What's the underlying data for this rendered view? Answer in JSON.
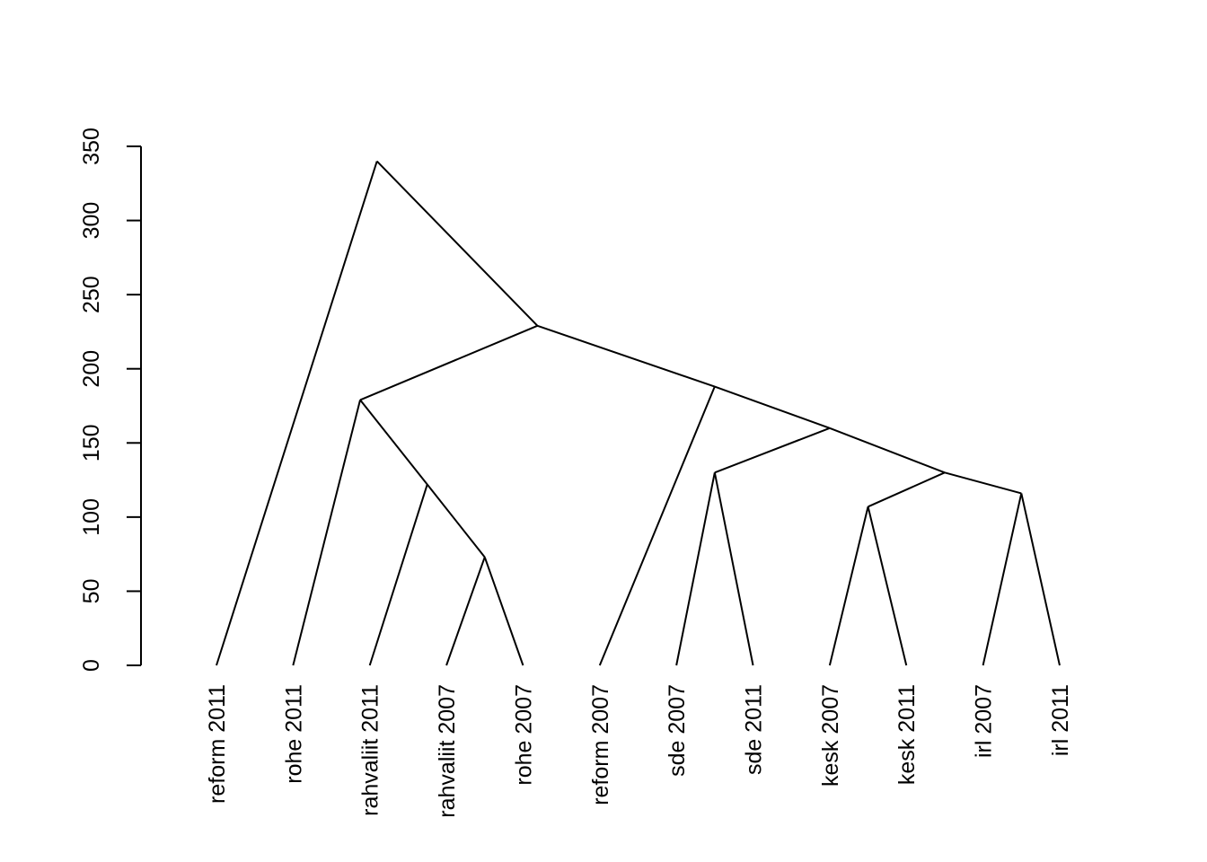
{
  "chart_data": {
    "type": "dendrogram",
    "labels": [
      "reform 2011",
      "rohe 2011",
      "rahvaliit 2011",
      "rahvaliit 2007",
      "rohe 2007",
      "reform 2007",
      "sde 2007",
      "sde 2011",
      "kesk 2007",
      "kesk 2011",
      "irl 2007",
      "irl 2011"
    ],
    "merges": [
      {
        "children": [
          -4,
          -5
        ],
        "height": 73
      },
      {
        "children": [
          -3,
          1
        ],
        "height": 122
      },
      {
        "children": [
          -2,
          2
        ],
        "height": 179
      },
      {
        "children": [
          -7,
          -8
        ],
        "height": 130
      },
      {
        "children": [
          -9,
          -10
        ],
        "height": 107
      },
      {
        "children": [
          -11,
          -12
        ],
        "height": 116
      },
      {
        "children": [
          5,
          6
        ],
        "height": 130
      },
      {
        "children": [
          4,
          7
        ],
        "height": 160
      },
      {
        "children": [
          -6,
          8
        ],
        "height": 188
      },
      {
        "children": [
          3,
          9
        ],
        "height": 229
      },
      {
        "children": [
          -1,
          10
        ],
        "height": 340
      }
    ],
    "color": "#000000",
    "ylim": [
      0,
      350
    ],
    "yticks": [
      0,
      50,
      100,
      150,
      200,
      250,
      300,
      350
    ]
  }
}
